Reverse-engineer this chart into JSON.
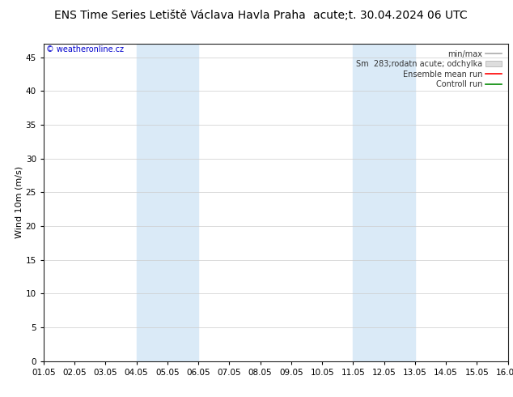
{
  "title_left": "ENS Time Series Letiště Václava Havla Praha",
  "title_right": "acute;t. 30.04.2024 06 UTC",
  "ylabel": "Wind 10m (m/s)",
  "watermark": "© weatheronline.cz",
  "watermark_color": "#0000cc",
  "xlim_start": 0,
  "xlim_end": 15,
  "ylim_min": 0,
  "ylim_max": 47,
  "yticks": [
    0,
    5,
    10,
    15,
    20,
    25,
    30,
    35,
    40,
    45
  ],
  "xtick_labels": [
    "01.05",
    "02.05",
    "03.05",
    "04.05",
    "05.05",
    "06.05",
    "07.05",
    "08.05",
    "09.05",
    "10.05",
    "11.05",
    "12.05",
    "13.05",
    "14.05",
    "15.05",
    "16.05"
  ],
  "xtick_positions": [
    0,
    1,
    2,
    3,
    4,
    5,
    6,
    7,
    8,
    9,
    10,
    11,
    12,
    13,
    14,
    15
  ],
  "shaded_regions": [
    {
      "xmin": 3,
      "xmax": 5,
      "color": "#daeaf7"
    },
    {
      "xmin": 10,
      "xmax": 12,
      "color": "#daeaf7"
    }
  ],
  "bg_color": "#ffffff",
  "plot_bg_color": "#ffffff",
  "grid_color": "#cccccc",
  "title_fontsize": 10,
  "axis_fontsize": 8,
  "tick_fontsize": 7.5,
  "legend_fontsize": 7
}
